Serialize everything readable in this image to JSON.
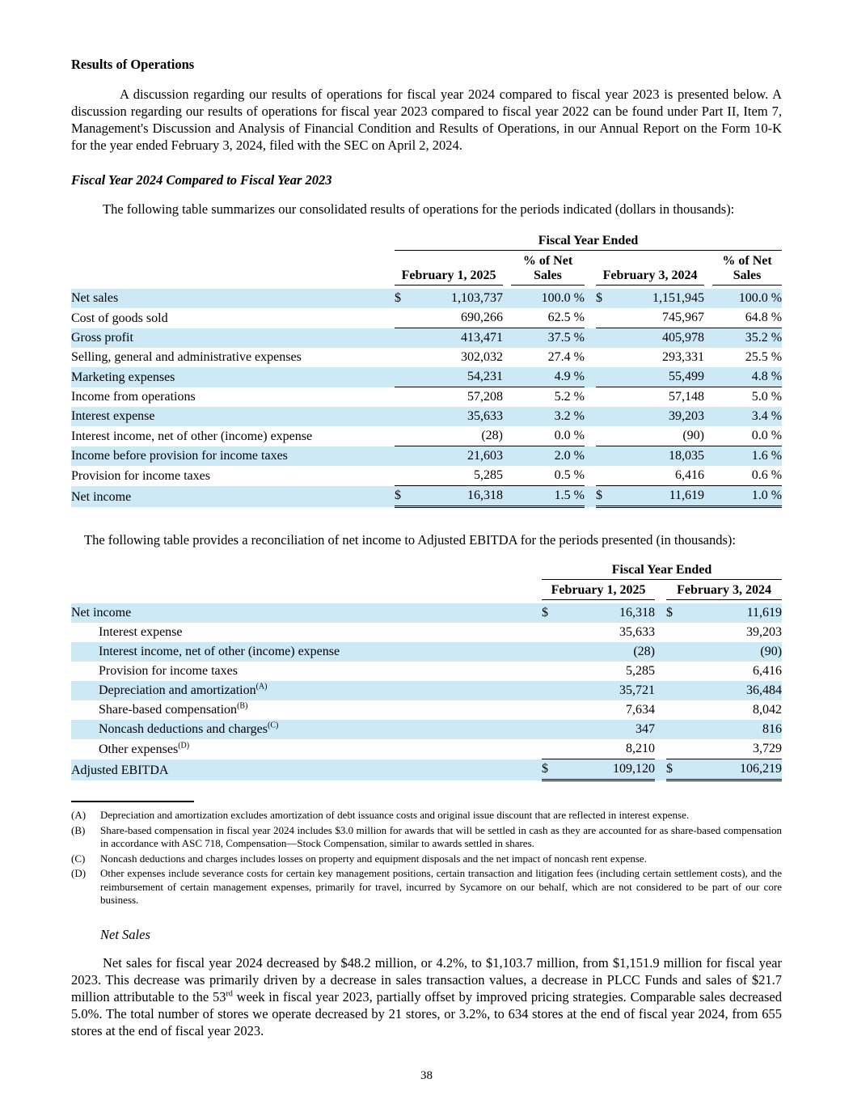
{
  "colors": {
    "row_shade": "#cde9f6"
  },
  "headings": {
    "results": "Results of Operations",
    "fiscal_comparison": "Fiscal Year 2024 Compared to Fiscal Year 2023",
    "net_sales": "Net Sales"
  },
  "paragraphs": {
    "intro": "A discussion regarding our results of operations for fiscal year 2024 compared to fiscal year 2023 is presented below. A discussion regarding our results of operations for fiscal year 2023 compared to fiscal year 2022 can be found under Part II, Item 7, Management's Discussion and Analysis of Financial Condition and Results of Operations, in our Annual Report on the Form 10-K for the year ended February 3, 2024, filed with the SEC on April 2, 2024.",
    "table1_intro": "The following table summarizes our consolidated results of operations for the periods indicated (dollars in thousands):",
    "table2_intro": "The following table provides a reconciliation of net income to Adjusted EBITDA for the periods presented (in thousands):",
    "net_sales": [
      {
        "text": "Net sales for fiscal year 2024 decreased by $48.2 million, or 4.2%, to $1,103.7 million, from $1,151.9 million for fiscal year 2023. This decrease was primarily driven by a decrease in sales transaction values, a decrease in PLCC Funds and sales of $21.7 million attributable to the 53"
      },
      {
        "sup": "rd"
      },
      {
        "text": " week in fiscal year 2023, partially offset by improved pricing strategies. Comparable sales decreased 5.0%. The total number of stores we operate decreased by 21 stores, or 3.2%, to 634 stores at the end of fiscal year 2024, from 655 stores at the end of fiscal year 2023."
      }
    ]
  },
  "results_table": {
    "spanner": "Fiscal Year Ended",
    "columns": [
      "February 1, 2025",
      "% of Net Sales",
      "February 3, 2024",
      "% of Net Sales"
    ],
    "rows": [
      {
        "label": "Net sales",
        "d1": "$",
        "v1": "1,103,737",
        "p1": "100.0 %",
        "d2": "$",
        "v2": "1,151,945",
        "p2": "100.0 %",
        "shade": true
      },
      {
        "label": "Cost of goods sold",
        "v1": "690,266",
        "p1": "62.5 %",
        "v2": "745,967",
        "p2": "64.8 %",
        "rule": "single"
      },
      {
        "label": "Gross profit",
        "v1": "413,471",
        "p1": "37.5 %",
        "v2": "405,978",
        "p2": "35.2 %",
        "shade": true
      },
      {
        "label": "Selling, general and administrative expenses",
        "v1": "302,032",
        "p1": "27.4 %",
        "v2": "293,331",
        "p2": "25.5 %"
      },
      {
        "label": "Marketing expenses",
        "v1": "54,231",
        "p1": "4.9 %",
        "v2": "55,499",
        "p2": "4.8 %",
        "shade": true,
        "rule": "single"
      },
      {
        "label": "Income from operations",
        "v1": "57,208",
        "p1": "5.2 %",
        "v2": "57,148",
        "p2": "5.0 %"
      },
      {
        "label": "Interest expense",
        "v1": "35,633",
        "p1": "3.2 %",
        "v2": "39,203",
        "p2": "3.4 %",
        "shade": true
      },
      {
        "label": "Interest income, net of other (income) expense",
        "v1": "(28)",
        "p1": "0.0 %",
        "v2": "(90)",
        "p2": "0.0 %",
        "rule": "single"
      },
      {
        "label": "Income before provision for income taxes",
        "v1": "21,603",
        "p1": "2.0 %",
        "v2": "18,035",
        "p2": "1.6 %",
        "shade": true
      },
      {
        "label": "Provision for income taxes",
        "v1": "5,285",
        "p1": "0.5 %",
        "v2": "6,416",
        "p2": "0.6 %",
        "rule": "single"
      },
      {
        "label": "Net income",
        "d1": "$",
        "v1": "16,318",
        "p1": "1.5 %",
        "d2": "$",
        "v2": "11,619",
        "p2": "1.0 %",
        "shade": true,
        "rule": "double"
      }
    ]
  },
  "ebitda_table": {
    "spanner": "Fiscal Year Ended",
    "columns": [
      "February 1, 2025",
      "February 3, 2024"
    ],
    "rows": [
      {
        "label": "Net income",
        "d1": "$",
        "v1": "16,318",
        "d2": "$",
        "v2": "11,619",
        "shade": true
      },
      {
        "label": "Interest expense",
        "v1": "35,633",
        "v2": "39,203",
        "indent": true
      },
      {
        "label": "Interest income, net of other (income) expense",
        "v1": "(28)",
        "v2": "(90)",
        "shade": true,
        "indent": true
      },
      {
        "label": "Provision for income taxes",
        "v1": "5,285",
        "v2": "6,416",
        "indent": true
      },
      {
        "label": "Depreciation and amortization",
        "sup": "(A)",
        "v1": "35,721",
        "v2": "36,484",
        "shade": true,
        "indent": true
      },
      {
        "label": "Share-based compensation",
        "sup": "(B)",
        "v1": "7,634",
        "v2": "8,042",
        "indent": true
      },
      {
        "label": "Noncash deductions and charges",
        "sup": "(C)",
        "v1": "347",
        "v2": "816",
        "shade": true,
        "indent": true
      },
      {
        "label": "Other expenses",
        "sup": "(D)",
        "v1": "8,210",
        "v2": "3,729",
        "indent": true,
        "rule": "single"
      },
      {
        "label": "Adjusted EBITDA",
        "d1": "$",
        "v1": "109,120",
        "d2": "$",
        "v2": "106,219",
        "shade": true,
        "rule": "double"
      }
    ]
  },
  "footnotes": [
    {
      "mark": "(A)",
      "text": "Depreciation and amortization excludes amortization of debt issuance costs and original issue discount that are reflected in interest expense."
    },
    {
      "mark": "(B)",
      "text": "Share-based compensation in fiscal year 2024 includes $3.0 million for awards that will be settled in cash as they are accounted for as share-based compensation in accordance with ASC 718, Compensation—Stock Compensation, similar to awards settled in shares."
    },
    {
      "mark": "(C)",
      "text": "Noncash deductions and charges includes losses on property and equipment disposals and the net impact of noncash rent expense."
    },
    {
      "mark": "(D)",
      "text": "Other expenses include severance costs for certain key management positions, certain transaction and litigation fees (including certain settlement costs), and the reimbursement of certain management expenses, primarily for travel, incurred by Sycamore on our behalf, which are not considered to be part of our core business."
    }
  ],
  "page": {
    "number": "38"
  }
}
